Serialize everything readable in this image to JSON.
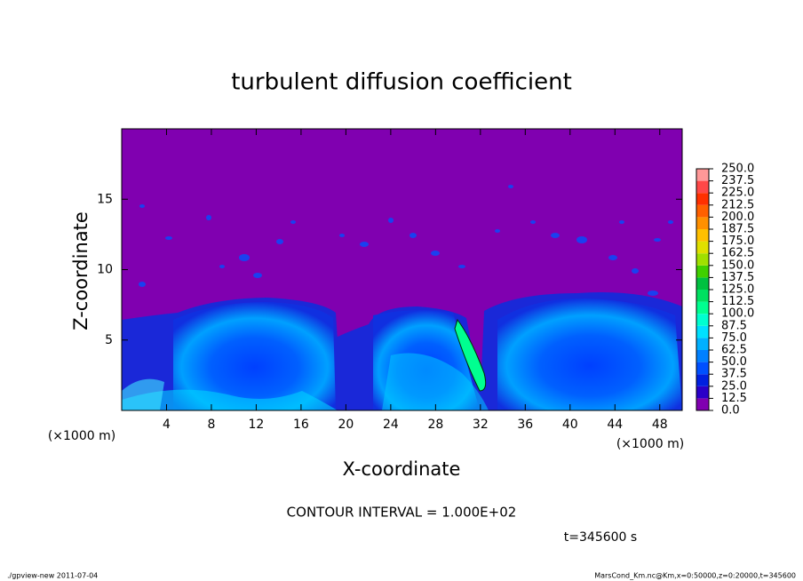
{
  "chart_data": {
    "type": "contour",
    "title": "turbulent diffusion coefficient",
    "x_label": "X-coordinate",
    "y_label": "Z-coordinate",
    "x_unit_label": "(×1000 m)",
    "y_unit_label": "(×1000 m)",
    "xlim": [
      0,
      50
    ],
    "xticks": [
      4,
      8,
      12,
      16,
      20,
      24,
      28,
      32,
      36,
      40,
      44,
      48
    ],
    "ylim": [
      0,
      20
    ],
    "yticks": [
      5,
      10,
      15
    ],
    "colorbar": {
      "levels": [
        {
          "value": 0,
          "label": "0.0"
        },
        {
          "value": 12.5,
          "label": "12.5"
        },
        {
          "value": 25,
          "label": "25.0"
        },
        {
          "value": 37.5,
          "label": "37.5"
        },
        {
          "value": 50,
          "label": "50.0"
        },
        {
          "value": 62.5,
          "label": "62.5"
        },
        {
          "value": 75,
          "label": "75.0"
        },
        {
          "value": 87.5,
          "label": "87.5"
        },
        {
          "value": 100,
          "label": "100.0"
        },
        {
          "value": 112.5,
          "label": "112.5"
        },
        {
          "value": 125,
          "label": "125.0"
        },
        {
          "value": 137.5,
          "label": "137.5"
        },
        {
          "value": 150,
          "label": "150.0"
        },
        {
          "value": 162.5,
          "label": "162.5"
        },
        {
          "value": 175,
          "label": "175.0"
        },
        {
          "value": 187.5,
          "label": "187.5"
        },
        {
          "value": 200,
          "label": "200.0"
        },
        {
          "value": 212.5,
          "label": "212.5"
        },
        {
          "value": 225,
          "label": "225.0"
        },
        {
          "value": 237.5,
          "label": "237.5"
        },
        {
          "value": 250,
          "label": "250.0"
        }
      ],
      "colors": [
        "#8000b0",
        "#2a00c8",
        "#0020e0",
        "#0050ff",
        "#0080ff",
        "#00b0ff",
        "#00e0ff",
        "#00ffd0",
        "#00ff90",
        "#00e060",
        "#00c040",
        "#40d000",
        "#a0e000",
        "#e0e000",
        "#ffc000",
        "#ff9000",
        "#ff6000",
        "#ff3000",
        "#ff4848",
        "#ff9898"
      ]
    },
    "contour_interval_label": "CONTOUR INTERVAL = 1.000E+02",
    "time_label": "t=345600 s",
    "footer_left": "./gpview-new  2011-07-04",
    "footer_right": "MarsCond_Km.nc@Km,x=0:50000,z=0:20000,t=345600"
  }
}
